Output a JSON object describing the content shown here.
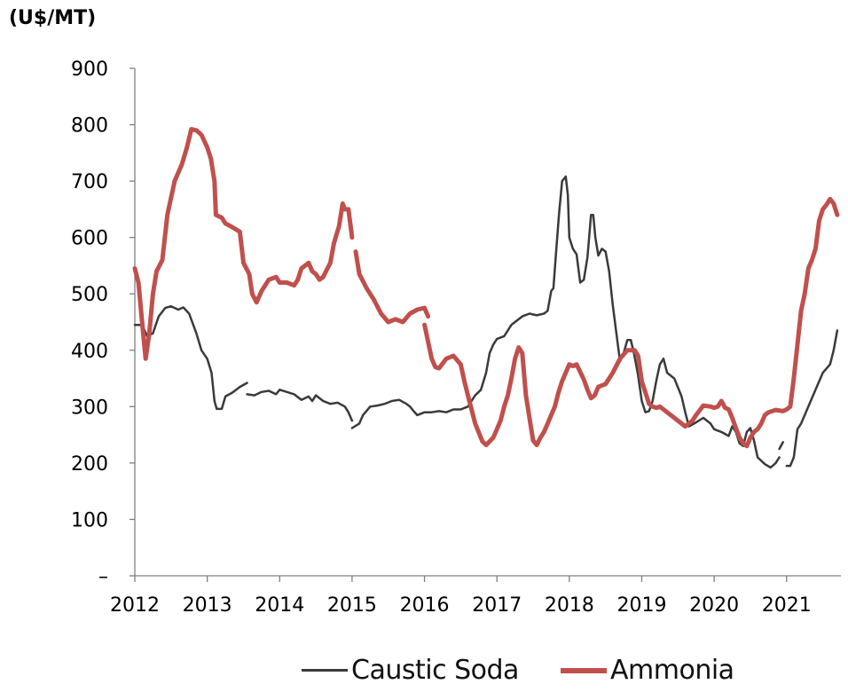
{
  "chart_data": {
    "type": "line",
    "unit_label": "(U$/MT)",
    "ylim": [
      0,
      900
    ],
    "y_ticks": [
      0,
      100,
      200,
      300,
      400,
      500,
      600,
      700,
      800,
      900
    ],
    "y_tick_labels": [
      "–",
      "100",
      "200",
      "300",
      "400",
      "500",
      "600",
      "700",
      "800",
      "900"
    ],
    "xlim": [
      2012.0,
      2021.75
    ],
    "x_ticks": [
      2012,
      2013,
      2014,
      2015,
      2016,
      2017,
      2018,
      2019,
      2020,
      2021
    ],
    "x_tick_labels": [
      "2012",
      "2013",
      "2014",
      "2015",
      "2016",
      "2017",
      "2018",
      "2019",
      "2020",
      "2021"
    ],
    "grid": false,
    "legend_position": "bottom",
    "colors": {
      "caustic_soda": "#3a3a3a",
      "ammonia": "#c0504d",
      "axis": "#7f7f7f"
    },
    "series": [
      {
        "name": "Caustic Soda",
        "color": "#3a3a3a",
        "points": [
          [
            2012.0,
            445
          ],
          [
            2012.1,
            445
          ],
          [
            2012.17,
            425
          ],
          [
            2012.25,
            430
          ],
          [
            2012.33,
            460
          ],
          [
            2012.42,
            475
          ],
          [
            2012.5,
            478
          ],
          [
            2012.6,
            472
          ],
          [
            2012.67,
            476
          ],
          [
            2012.75,
            465
          ],
          [
            2012.85,
            430
          ],
          [
            2012.92,
            400
          ],
          [
            2013.0,
            385
          ],
          [
            2013.06,
            360
          ],
          [
            2013.1,
            310
          ],
          [
            2013.13,
            296
          ],
          [
            2013.2,
            296
          ],
          [
            2013.25,
            318
          ],
          [
            2013.35,
            325
          ],
          [
            2013.45,
            335
          ],
          [
            2013.55,
            342
          ],
          null,
          [
            2013.55,
            322
          ],
          [
            2013.65,
            320
          ],
          [
            2013.75,
            326
          ],
          [
            2013.85,
            328
          ],
          [
            2013.95,
            322
          ],
          [
            2014.0,
            330
          ],
          [
            2014.1,
            326
          ],
          [
            2014.2,
            322
          ],
          [
            2014.3,
            312
          ],
          [
            2014.4,
            318
          ],
          [
            2014.45,
            310
          ],
          [
            2014.5,
            320
          ],
          [
            2014.6,
            310
          ],
          [
            2014.7,
            305
          ],
          [
            2014.8,
            307
          ],
          [
            2014.9,
            300
          ],
          [
            2014.95,
            290
          ],
          [
            2015.0,
            275
          ],
          null,
          [
            2015.0,
            262
          ],
          [
            2015.1,
            270
          ],
          [
            2015.15,
            285
          ],
          [
            2015.25,
            300
          ],
          [
            2015.35,
            302
          ],
          [
            2015.45,
            305
          ],
          [
            2015.55,
            310
          ],
          [
            2015.65,
            312
          ],
          [
            2015.75,
            305
          ],
          [
            2015.8,
            300
          ],
          [
            2015.85,
            292
          ],
          [
            2015.9,
            285
          ],
          [
            2016.0,
            290
          ],
          [
            2016.1,
            290
          ],
          [
            2016.2,
            292
          ],
          [
            2016.3,
            290
          ],
          [
            2016.4,
            295
          ],
          [
            2016.5,
            295
          ],
          [
            2016.6,
            300
          ],
          [
            2016.7,
            320
          ],
          [
            2016.78,
            330
          ],
          [
            2016.85,
            360
          ],
          [
            2016.9,
            395
          ],
          [
            2016.95,
            410
          ],
          [
            2017.0,
            420
          ],
          [
            2017.1,
            425
          ],
          [
            2017.15,
            435
          ],
          [
            2017.2,
            445
          ],
          [
            2017.25,
            450
          ],
          [
            2017.35,
            460
          ],
          [
            2017.45,
            465
          ],
          [
            2017.55,
            462
          ],
          [
            2017.65,
            465
          ],
          [
            2017.7,
            470
          ],
          [
            2017.75,
            505
          ],
          [
            2017.78,
            510
          ],
          [
            2017.82,
            580
          ],
          [
            2017.86,
            645
          ],
          [
            2017.9,
            700
          ],
          [
            2017.95,
            708
          ],
          [
            2017.98,
            675
          ],
          [
            2018.0,
            600
          ],
          [
            2018.05,
            580
          ],
          [
            2018.1,
            570
          ],
          [
            2018.15,
            520
          ],
          [
            2018.2,
            525
          ],
          [
            2018.25,
            565
          ],
          [
            2018.3,
            640
          ],
          [
            2018.33,
            640
          ],
          [
            2018.36,
            600
          ],
          [
            2018.4,
            568
          ],
          [
            2018.45,
            580
          ],
          [
            2018.5,
            575
          ],
          [
            2018.55,
            540
          ],
          [
            2018.6,
            480
          ],
          [
            2018.65,
            430
          ],
          [
            2018.7,
            380
          ],
          [
            2018.75,
            395
          ],
          [
            2018.8,
            418
          ],
          [
            2018.85,
            418
          ],
          [
            2018.9,
            390
          ],
          [
            2018.95,
            355
          ],
          [
            2019.0,
            310
          ],
          [
            2019.05,
            290
          ],
          [
            2019.1,
            292
          ],
          [
            2019.15,
            310
          ],
          [
            2019.2,
            345
          ],
          [
            2019.25,
            375
          ],
          [
            2019.3,
            385
          ],
          [
            2019.35,
            360
          ],
          [
            2019.4,
            355
          ],
          [
            2019.45,
            350
          ],
          [
            2019.55,
            318
          ],
          [
            2019.6,
            290
          ],
          [
            2019.65,
            265
          ],
          [
            2019.75,
            272
          ],
          [
            2019.85,
            280
          ],
          [
            2019.95,
            270
          ],
          [
            2020.0,
            260
          ],
          [
            2020.1,
            255
          ],
          [
            2020.2,
            248
          ],
          [
            2020.25,
            265
          ],
          [
            2020.3,
            255
          ],
          [
            2020.35,
            235
          ],
          [
            2020.4,
            230
          ],
          [
            2020.45,
            255
          ],
          [
            2020.5,
            262
          ],
          [
            2020.55,
            240
          ],
          [
            2020.6,
            210
          ],
          [
            2020.7,
            198
          ],
          [
            2020.78,
            192
          ],
          [
            2020.85,
            200
          ],
          [
            2020.9,
            210
          ],
          null,
          [
            2020.9,
            225
          ],
          [
            2020.95,
            237
          ],
          null,
          [
            2021.0,
            195
          ],
          [
            2021.05,
            195
          ],
          [
            2021.1,
            210
          ],
          [
            2021.15,
            260
          ],
          [
            2021.2,
            270
          ],
          [
            2021.25,
            285
          ],
          [
            2021.3,
            300
          ],
          [
            2021.4,
            330
          ],
          [
            2021.5,
            360
          ],
          [
            2021.6,
            375
          ],
          [
            2021.65,
            400
          ],
          [
            2021.7,
            435
          ]
        ]
      },
      {
        "name": "Ammonia",
        "color": "#c0504d",
        "points": [
          [
            2012.0,
            545
          ],
          [
            2012.05,
            520
          ],
          [
            2012.1,
            450
          ],
          [
            2012.15,
            385
          ],
          [
            2012.2,
            430
          ],
          [
            2012.25,
            500
          ],
          [
            2012.3,
            540
          ],
          [
            2012.38,
            560
          ],
          [
            2012.45,
            640
          ],
          [
            2012.55,
            700
          ],
          [
            2012.65,
            730
          ],
          [
            2012.72,
            760
          ],
          [
            2012.78,
            792
          ],
          [
            2012.85,
            790
          ],
          [
            2012.92,
            782
          ],
          [
            2013.0,
            760
          ],
          [
            2013.05,
            740
          ],
          [
            2013.1,
            700
          ],
          [
            2013.12,
            640
          ],
          [
            2013.2,
            635
          ],
          [
            2013.25,
            625
          ],
          [
            2013.35,
            618
          ],
          [
            2013.45,
            610
          ],
          [
            2013.5,
            555
          ],
          [
            2013.58,
            535
          ],
          [
            2013.62,
            500
          ],
          [
            2013.68,
            485
          ],
          [
            2013.75,
            505
          ],
          [
            2013.85,
            525
          ],
          [
            2013.95,
            530
          ],
          [
            2014.0,
            520
          ],
          [
            2014.1,
            520
          ],
          [
            2014.2,
            515
          ],
          [
            2014.25,
            525
          ],
          [
            2014.3,
            545
          ],
          [
            2014.4,
            555
          ],
          [
            2014.45,
            540
          ],
          [
            2014.5,
            535
          ],
          [
            2014.55,
            525
          ],
          [
            2014.6,
            530
          ],
          [
            2014.7,
            555
          ],
          [
            2014.75,
            590
          ],
          [
            2014.82,
            620
          ],
          [
            2014.87,
            660
          ],
          [
            2014.9,
            650
          ],
          [
            2014.95,
            650
          ],
          [
            2015.0,
            600
          ],
          null,
          [
            2015.05,
            575
          ],
          [
            2015.1,
            535
          ],
          [
            2015.2,
            510
          ],
          [
            2015.3,
            490
          ],
          [
            2015.4,
            465
          ],
          [
            2015.5,
            450
          ],
          [
            2015.6,
            455
          ],
          [
            2015.7,
            450
          ],
          [
            2015.8,
            465
          ],
          [
            2015.9,
            472
          ],
          [
            2016.0,
            475
          ],
          [
            2016.05,
            460
          ],
          null,
          [
            2016.0,
            445
          ],
          [
            2016.05,
            415
          ],
          [
            2016.1,
            385
          ],
          [
            2016.15,
            370
          ],
          [
            2016.2,
            368
          ],
          [
            2016.3,
            385
          ],
          [
            2016.4,
            390
          ],
          [
            2016.5,
            375
          ],
          [
            2016.55,
            345
          ],
          [
            2016.6,
            320
          ],
          [
            2016.7,
            270
          ],
          [
            2016.8,
            238
          ],
          [
            2016.85,
            232
          ],
          [
            2016.95,
            245
          ],
          [
            2017.05,
            275
          ],
          [
            2017.1,
            300
          ],
          [
            2017.15,
            320
          ],
          [
            2017.2,
            350
          ],
          [
            2017.25,
            385
          ],
          [
            2017.3,
            405
          ],
          [
            2017.35,
            395
          ],
          [
            2017.4,
            320
          ],
          [
            2017.45,
            280
          ],
          [
            2017.5,
            240
          ],
          [
            2017.55,
            232
          ],
          [
            2017.6,
            245
          ],
          [
            2017.65,
            255
          ],
          [
            2017.7,
            270
          ],
          [
            2017.75,
            285
          ],
          [
            2017.8,
            300
          ],
          [
            2017.85,
            325
          ],
          [
            2017.9,
            345
          ],
          [
            2018.0,
            375
          ],
          [
            2018.05,
            372
          ],
          [
            2018.1,
            375
          ],
          [
            2018.2,
            348
          ],
          [
            2018.25,
            330
          ],
          [
            2018.3,
            315
          ],
          [
            2018.35,
            320
          ],
          [
            2018.4,
            335
          ],
          [
            2018.5,
            340
          ],
          [
            2018.6,
            360
          ],
          [
            2018.7,
            385
          ],
          [
            2018.8,
            400
          ],
          [
            2018.9,
            400
          ],
          [
            2018.95,
            390
          ],
          [
            2019.0,
            345
          ],
          [
            2019.05,
            325
          ],
          [
            2019.1,
            305
          ],
          [
            2019.15,
            300
          ],
          [
            2019.2,
            298
          ],
          [
            2019.25,
            300
          ],
          [
            2019.35,
            290
          ],
          [
            2019.45,
            280
          ],
          [
            2019.55,
            270
          ],
          [
            2019.6,
            265
          ],
          [
            2019.7,
            275
          ],
          [
            2019.75,
            285
          ],
          [
            2019.85,
            302
          ],
          [
            2019.95,
            300
          ],
          [
            2020.0,
            298
          ],
          [
            2020.05,
            300
          ],
          [
            2020.1,
            310
          ],
          [
            2020.15,
            298
          ],
          [
            2020.2,
            295
          ],
          [
            2020.25,
            280
          ],
          [
            2020.3,
            262
          ],
          [
            2020.35,
            245
          ],
          [
            2020.4,
            235
          ],
          [
            2020.45,
            230
          ],
          [
            2020.5,
            245
          ],
          [
            2020.55,
            255
          ],
          [
            2020.6,
            260
          ],
          [
            2020.65,
            270
          ],
          [
            2020.7,
            285
          ],
          [
            2020.75,
            290
          ],
          [
            2020.85,
            294
          ],
          [
            2020.95,
            292
          ],
          [
            2021.0,
            295
          ],
          [
            2021.05,
            300
          ],
          [
            2021.1,
            350
          ],
          [
            2021.15,
            410
          ],
          [
            2021.2,
            470
          ],
          [
            2021.25,
            500
          ],
          [
            2021.3,
            545
          ],
          [
            2021.35,
            560
          ],
          [
            2021.4,
            580
          ],
          [
            2021.45,
            630
          ],
          [
            2021.5,
            650
          ],
          [
            2021.55,
            658
          ],
          [
            2021.6,
            668
          ],
          [
            2021.65,
            660
          ],
          [
            2021.7,
            640
          ]
        ]
      }
    ]
  }
}
